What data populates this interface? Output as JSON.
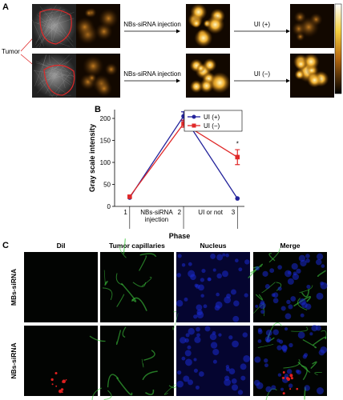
{
  "panel_a": {
    "label": "A",
    "tumor_label": "Tumor",
    "rows": [
      {
        "step1": "NBs-siRNA injection",
        "step2": "UI (+)"
      },
      {
        "step1": "NBs-siRNA injection",
        "step2": "UI (−)"
      }
    ]
  },
  "panel_b": {
    "label": "B"
  },
  "panel_c": {
    "label": "C",
    "columns": [
      "DiI",
      "Tumor capillaries",
      "Nucleus",
      "Merge"
    ],
    "rows": [
      "MBs-siRNA",
      "NBs-siRNA"
    ]
  },
  "chart_data": {
    "type": "line",
    "xlabel": "Phase",
    "ylabel": "Gray scale intensity",
    "xlim": [
      0.72,
      3.13
    ],
    "xticks": [
      1,
      2,
      3
    ],
    "ylim": [
      0,
      220
    ],
    "yticks": [
      0,
      50,
      100,
      150,
      200
    ],
    "legend": "upper right",
    "phase_labels": [
      {
        "lines": [
          "NBs-siRNA",
          "injection"
        ],
        "x": 1.5
      },
      {
        "lines": [
          "UI or not"
        ],
        "x": 2.5
      }
    ],
    "annotations": [
      {
        "text": "*",
        "x": 3,
        "y": 137
      }
    ],
    "series": [
      {
        "name": "UI (+)",
        "color": "#23239b",
        "marker": "circle",
        "values": [
          20,
          205,
          18
        ],
        "errors": [
          null,
          10,
          null
        ]
      },
      {
        "name": "UI (−)",
        "color": "#e02828",
        "marker": "square",
        "values": [
          22,
          188,
          112
        ],
        "errors": [
          null,
          8,
          17
        ]
      }
    ]
  }
}
